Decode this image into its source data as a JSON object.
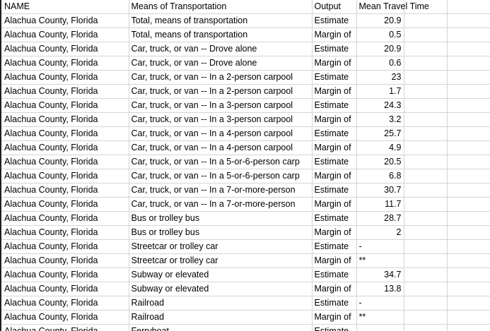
{
  "headers": [
    "NAME",
    "Means of Transportation",
    "Output",
    "Mean Travel Time",
    "",
    ""
  ],
  "rows": [
    [
      "Alachua County, Florida",
      "Total, means of transportation",
      "Estimate",
      "20.9"
    ],
    [
      "Alachua County, Florida",
      "Total, means of transportation",
      "Margin of",
      "0.5"
    ],
    [
      "Alachua County, Florida",
      "Car, truck, or van -- Drove alone",
      "Estimate",
      "20.9"
    ],
    [
      "Alachua County, Florida",
      "Car, truck, or van -- Drove alone",
      "Margin of",
      "0.6"
    ],
    [
      "Alachua County, Florida",
      "Car, truck, or van -- In a 2-person carpool",
      "Estimate",
      "23"
    ],
    [
      "Alachua County, Florida",
      "Car, truck, or van -- In a 2-person carpool",
      "Margin of",
      "1.7"
    ],
    [
      "Alachua County, Florida",
      "Car, truck, or van -- In a 3-person carpool",
      "Estimate",
      "24.3"
    ],
    [
      "Alachua County, Florida",
      "Car, truck, or van -- In a 3-person carpool",
      "Margin of",
      "3.2"
    ],
    [
      "Alachua County, Florida",
      "Car, truck, or van -- In a 4-person carpool",
      "Estimate",
      "25.7"
    ],
    [
      "Alachua County, Florida",
      "Car, truck, or van -- In a 4-person carpool",
      "Margin of",
      "4.9"
    ],
    [
      "Alachua County, Florida",
      "Car, truck, or van -- In a 5-or-6-person carp",
      "Estimate",
      "20.5"
    ],
    [
      "Alachua County, Florida",
      "Car, truck, or van -- In a 5-or-6-person carp",
      "Margin of",
      "6.8"
    ],
    [
      "Alachua County, Florida",
      "Car, truck, or van -- In a 7-or-more-person",
      "Estimate",
      "30.7"
    ],
    [
      "Alachua County, Florida",
      "Car, truck, or van -- In a 7-or-more-person",
      "Margin of",
      "11.7"
    ],
    [
      "Alachua County, Florida",
      "Bus or trolley bus",
      "Estimate",
      "28.7"
    ],
    [
      "Alachua County, Florida",
      "Bus or trolley bus",
      "Margin of",
      "2"
    ],
    [
      "Alachua County, Florida",
      "Streetcar or trolley car",
      "Estimate",
      "-"
    ],
    [
      "Alachua County, Florida",
      "Streetcar or trolley car",
      "Margin of",
      "**"
    ],
    [
      "Alachua County, Florida",
      "Subway or elevated",
      "Estimate",
      "34.7"
    ],
    [
      "Alachua County, Florida",
      "Subway or elevated",
      "Margin of",
      "13.8"
    ],
    [
      "Alachua County, Florida",
      "Railroad",
      "Estimate",
      "-"
    ],
    [
      "Alachua County, Florida",
      "Railroad",
      "Margin of",
      "**"
    ],
    [
      "Alachua County, Florida",
      "Ferryboat",
      "Estimate",
      ""
    ]
  ]
}
